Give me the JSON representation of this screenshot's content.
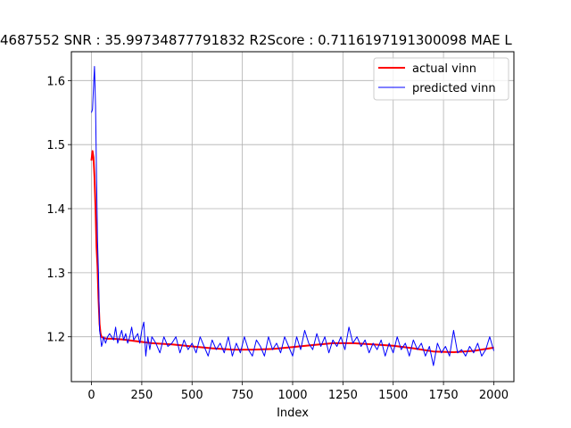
{
  "chart_data": {
    "type": "line",
    "title": "4687552  SNR : 35.99734877791832 R2Score : 0.7116197191300098 MAE L",
    "xlabel": "Index",
    "ylabel": "",
    "xlim": [
      -100,
      2100
    ],
    "ylim": [
      1.13,
      1.645
    ],
    "xticks": [
      0,
      250,
      500,
      750,
      1000,
      1250,
      1500,
      1750,
      2000
    ],
    "yticks": [
      1.2,
      1.3,
      1.4,
      1.5,
      1.6
    ],
    "xtick_labels": [
      "0",
      "250",
      "500",
      "750",
      "1000",
      "1250",
      "1500",
      "1750",
      "2000"
    ],
    "ytick_labels": [
      "1.2",
      "1.3",
      "1.4",
      "1.5",
      "1.6"
    ],
    "grid": true,
    "legend_position": "top-right",
    "series": [
      {
        "name": "actual vinn",
        "color": "#ff0000",
        "x": [
          0,
          5,
          10,
          15,
          20,
          25,
          30,
          35,
          40,
          45,
          50,
          60,
          80,
          100,
          150,
          200,
          300,
          400,
          500,
          600,
          700,
          800,
          900,
          1000,
          1100,
          1200,
          1300,
          1400,
          1500,
          1600,
          1700,
          1800,
          1900,
          2000
        ],
        "y": [
          1.475,
          1.49,
          1.48,
          1.45,
          1.4,
          1.34,
          1.31,
          1.26,
          1.22,
          1.205,
          1.2,
          1.198,
          1.197,
          1.197,
          1.196,
          1.194,
          1.19,
          1.188,
          1.185,
          1.182,
          1.18,
          1.18,
          1.181,
          1.184,
          1.187,
          1.19,
          1.19,
          1.188,
          1.186,
          1.182,
          1.177,
          1.176,
          1.178,
          1.183
        ]
      },
      {
        "name": "predicted vinn",
        "color": "#0000ff",
        "x": [
          0,
          5,
          10,
          15,
          20,
          25,
          30,
          35,
          40,
          45,
          50,
          55,
          60,
          70,
          80,
          90,
          100,
          110,
          120,
          130,
          140,
          150,
          160,
          170,
          180,
          190,
          200,
          210,
          220,
          230,
          240,
          250,
          260,
          270,
          280,
          290,
          300,
          320,
          340,
          360,
          380,
          400,
          420,
          440,
          460,
          480,
          500,
          520,
          540,
          560,
          580,
          600,
          620,
          640,
          660,
          680,
          700,
          720,
          740,
          760,
          780,
          800,
          820,
          840,
          860,
          880,
          900,
          920,
          940,
          960,
          980,
          1000,
          1020,
          1040,
          1060,
          1080,
          1100,
          1120,
          1140,
          1160,
          1180,
          1200,
          1220,
          1240,
          1260,
          1280,
          1300,
          1320,
          1340,
          1360,
          1380,
          1400,
          1420,
          1440,
          1460,
          1480,
          1500,
          1520,
          1540,
          1560,
          1580,
          1600,
          1620,
          1640,
          1660,
          1680,
          1700,
          1720,
          1740,
          1760,
          1780,
          1800,
          1820,
          1840,
          1860,
          1880,
          1900,
          1920,
          1940,
          1960,
          1980,
          2000
        ],
        "y": [
          1.55,
          1.555,
          1.59,
          1.622,
          1.56,
          1.45,
          1.35,
          1.3,
          1.21,
          1.2,
          1.185,
          1.19,
          1.2,
          1.19,
          1.2,
          1.205,
          1.2,
          1.195,
          1.215,
          1.19,
          1.2,
          1.21,
          1.195,
          1.205,
          1.19,
          1.2,
          1.215,
          1.195,
          1.2,
          1.205,
          1.19,
          1.21,
          1.223,
          1.17,
          1.2,
          1.18,
          1.2,
          1.19,
          1.175,
          1.2,
          1.185,
          1.19,
          1.2,
          1.175,
          1.195,
          1.18,
          1.19,
          1.175,
          1.2,
          1.185,
          1.17,
          1.195,
          1.18,
          1.19,
          1.175,
          1.2,
          1.17,
          1.19,
          1.175,
          1.2,
          1.18,
          1.17,
          1.195,
          1.185,
          1.17,
          1.2,
          1.18,
          1.19,
          1.175,
          1.2,
          1.185,
          1.17,
          1.2,
          1.18,
          1.21,
          1.19,
          1.18,
          1.205,
          1.185,
          1.2,
          1.175,
          1.195,
          1.185,
          1.2,
          1.18,
          1.215,
          1.19,
          1.2,
          1.185,
          1.195,
          1.175,
          1.19,
          1.18,
          1.195,
          1.17,
          1.19,
          1.175,
          1.2,
          1.18,
          1.19,
          1.17,
          1.195,
          1.18,
          1.19,
          1.17,
          1.185,
          1.155,
          1.19,
          1.175,
          1.185,
          1.17,
          1.21,
          1.175,
          1.18,
          1.17,
          1.185,
          1.175,
          1.19,
          1.17,
          1.18,
          1.2,
          1.178
        ]
      }
    ]
  }
}
